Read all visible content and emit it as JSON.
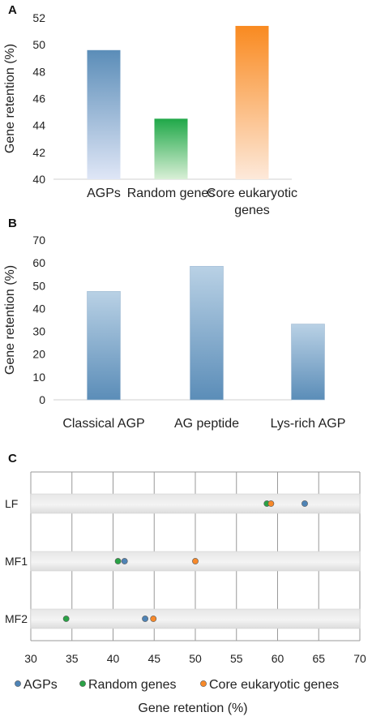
{
  "chart_data": [
    {
      "panel": "A",
      "type": "bar",
      "ylabel": "Gene retention (%)",
      "ylim": [
        40,
        52
      ],
      "yticks": [
        40,
        42,
        44,
        46,
        48,
        50,
        52
      ],
      "categories": [
        "AGPs",
        "Random genes",
        "Core eukaryotic genes"
      ],
      "category_lines": [
        [
          "AGPs"
        ],
        [
          "Random genes"
        ],
        [
          "Core eukaryotic",
          "genes"
        ]
      ],
      "values": [
        49.6,
        44.5,
        51.4
      ],
      "colors": [
        "#5b8db8",
        "#22a84a",
        "#f78a22"
      ]
    },
    {
      "panel": "B",
      "type": "bar",
      "ylabel": "Gene retention (%)",
      "ylim": [
        0,
        70
      ],
      "yticks": [
        0,
        10,
        20,
        30,
        40,
        50,
        60,
        70
      ],
      "categories": [
        "Classical AGP",
        "AG peptide",
        "Lys-rich AGP"
      ],
      "values": [
        47.5,
        58.5,
        33.2
      ],
      "colors": [
        "#5b8db8",
        "#5b8db8",
        "#5b8db8"
      ]
    },
    {
      "panel": "C",
      "type": "scatter",
      "xlabel": "Gene retention (%)",
      "xlim": [
        30,
        70
      ],
      "xticks": [
        30,
        35,
        40,
        45,
        50,
        55,
        60,
        65,
        70
      ],
      "rows": [
        "LF",
        "MF1",
        "MF2"
      ],
      "series": [
        {
          "name": "AGPs",
          "color": "#4f84b6",
          "values": [
            63.3,
            41.4,
            43.9
          ]
        },
        {
          "name": "Random genes",
          "color": "#2aa246",
          "values": [
            58.7,
            40.6,
            34.3
          ]
        },
        {
          "name": "Core eukaryotic genes",
          "color": "#f7892a",
          "values": [
            59.2,
            50.0,
            44.9
          ]
        }
      ],
      "legend": "bottom"
    }
  ]
}
